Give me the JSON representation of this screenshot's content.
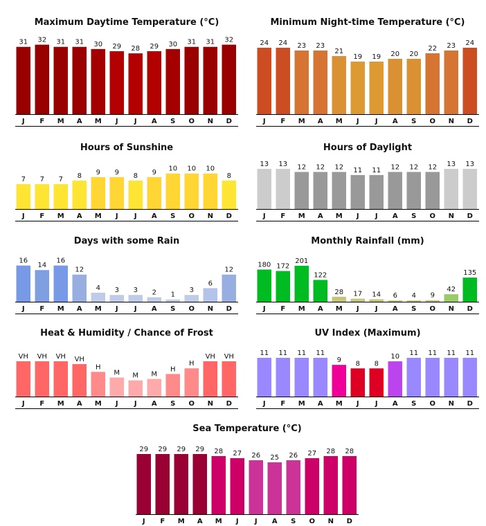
{
  "months": [
    "J",
    "F",
    "M",
    "A",
    "M",
    "J",
    "J",
    "A",
    "S",
    "O",
    "N",
    "D"
  ],
  "chart_data": [
    {
      "id": "max-temp",
      "type": "bar",
      "title": "Maximum Daytime Temperature (°C)",
      "categories": [
        "J",
        "F",
        "M",
        "A",
        "M",
        "J",
        "J",
        "A",
        "S",
        "O",
        "N",
        "D"
      ],
      "values": [
        31,
        32,
        31,
        31,
        30,
        29,
        28,
        29,
        30,
        31,
        31,
        32
      ],
      "labels": [
        "31",
        "32",
        "31",
        "31",
        "30",
        "29",
        "28",
        "29",
        "30",
        "31",
        "31",
        "32"
      ],
      "colors": [
        "#990000",
        "#990000",
        "#990000",
        "#990000",
        "#a40000",
        "#b30000",
        "#b30000",
        "#b30000",
        "#a40000",
        "#990000",
        "#990000",
        "#990000"
      ]
    },
    {
      "id": "min-temp",
      "type": "bar",
      "title": "Minimum Night-time Temperature (°C)",
      "categories": [
        "J",
        "F",
        "M",
        "A",
        "M",
        "J",
        "J",
        "A",
        "S",
        "O",
        "N",
        "D"
      ],
      "values": [
        24,
        24,
        23,
        23,
        21,
        19,
        19,
        20,
        20,
        22,
        23,
        24
      ],
      "labels": [
        "24",
        "24",
        "23",
        "23",
        "21",
        "19",
        "19",
        "20",
        "20",
        "22",
        "23",
        "24"
      ],
      "colors": [
        "#cc4d22",
        "#cc4d22",
        "#d67433",
        "#d67433",
        "#da9133",
        "#dd9a33",
        "#dd9a33",
        "#da9133",
        "#da9133",
        "#d67433",
        "#d67433",
        "#cc4d22"
      ]
    },
    {
      "id": "sunshine",
      "type": "bar",
      "title": "Hours of Sunshine",
      "categories": [
        "J",
        "F",
        "M",
        "A",
        "M",
        "J",
        "J",
        "A",
        "S",
        "O",
        "N",
        "D"
      ],
      "values": [
        7,
        7,
        7,
        8,
        9,
        9,
        8,
        9,
        10,
        10,
        10,
        8
      ],
      "labels": [
        "7",
        "7",
        "7",
        "8",
        "9",
        "9",
        "8",
        "9",
        "10",
        "10",
        "10",
        "8"
      ],
      "colors": [
        "#ffe533",
        "#ffe533",
        "#ffe533",
        "#ffe533",
        "#ffd633",
        "#ffd633",
        "#ffe533",
        "#ffd633",
        "#ffd633",
        "#ffd633",
        "#ffd633",
        "#ffe533"
      ]
    },
    {
      "id": "daylight",
      "type": "bar",
      "title": "Hours of Daylight",
      "categories": [
        "J",
        "F",
        "M",
        "A",
        "M",
        "J",
        "J",
        "A",
        "S",
        "O",
        "N",
        "D"
      ],
      "values": [
        13,
        13,
        12,
        12,
        12,
        11,
        11,
        12,
        12,
        12,
        13,
        13
      ],
      "labels": [
        "13",
        "13",
        "12",
        "12",
        "12",
        "11",
        "11",
        "12",
        "12",
        "12",
        "13",
        "13"
      ],
      "colors": [
        "#cccccc",
        "#cccccc",
        "#999999",
        "#999999",
        "#999999",
        "#999999",
        "#999999",
        "#999999",
        "#999999",
        "#999999",
        "#cccccc",
        "#cccccc"
      ]
    },
    {
      "id": "rain-days",
      "type": "bar",
      "title": "Days with some Rain",
      "categories": [
        "J",
        "F",
        "M",
        "A",
        "M",
        "J",
        "J",
        "A",
        "S",
        "O",
        "N",
        "D"
      ],
      "values": [
        16,
        14,
        16,
        12,
        4,
        3,
        3,
        2,
        1,
        3,
        6,
        12
      ],
      "labels": [
        "16",
        "14",
        "16",
        "12",
        "4",
        "3",
        "3",
        "2",
        "1",
        "3",
        "6",
        "12"
      ],
      "colors": [
        "#7799e6",
        "#7f9fe0",
        "#7799e6",
        "#99aee0",
        "#c0cbe8",
        "#c0cbe8",
        "#c0cbe8",
        "#c0cbe8",
        "#c0cbe8",
        "#c0cbe8",
        "#b3c3ea",
        "#99aee0"
      ]
    },
    {
      "id": "rainfall",
      "type": "bar",
      "title": "Monthly Rainfall (mm)",
      "categories": [
        "J",
        "F",
        "M",
        "A",
        "M",
        "J",
        "J",
        "A",
        "S",
        "O",
        "N",
        "D"
      ],
      "values": [
        180,
        172,
        201,
        122,
        28,
        17,
        14,
        6,
        4,
        9,
        42,
        135
      ],
      "labels": [
        "180",
        "172",
        "201",
        "122",
        "28",
        "17",
        "14",
        "6",
        "4",
        "9",
        "42",
        "135"
      ],
      "colors": [
        "#00bb22",
        "#00bb22",
        "#00bb22",
        "#00bb22",
        "#c4c47a",
        "#c4c47a",
        "#c4c47a",
        "#c4c47a",
        "#c4c47a",
        "#c4c47a",
        "#99cc66",
        "#00bb22"
      ]
    },
    {
      "id": "heat-frost",
      "type": "bar",
      "title": "Heat & Humidity / Chance of Frost",
      "categories": [
        "J",
        "F",
        "M",
        "A",
        "M",
        "J",
        "J",
        "A",
        "S",
        "O",
        "N",
        "D"
      ],
      "values": [
        5,
        5,
        5,
        4.6,
        3.5,
        2.7,
        2.3,
        2.5,
        3.2,
        4,
        5,
        5
      ],
      "labels": [
        "VH",
        "VH",
        "VH",
        "VH",
        "H",
        "M",
        "M",
        "M",
        "H",
        "H",
        "VH",
        "VH"
      ],
      "colors": [
        "#ff6666",
        "#ff6666",
        "#ff6666",
        "#ff6666",
        "#ff8a8a",
        "#ffaaaa",
        "#ffaaaa",
        "#ffaaaa",
        "#ff8a8a",
        "#ff8a8a",
        "#ff6666",
        "#ff6666"
      ]
    },
    {
      "id": "uv",
      "type": "bar",
      "title": "UV Index (Maximum)",
      "categories": [
        "J",
        "F",
        "M",
        "A",
        "M",
        "J",
        "J",
        "A",
        "S",
        "O",
        "N",
        "D"
      ],
      "values": [
        11,
        11,
        11,
        11,
        9,
        8,
        8,
        10,
        11,
        11,
        11,
        11
      ],
      "labels": [
        "11",
        "11",
        "11",
        "11",
        "9",
        "8",
        "8",
        "10",
        "11",
        "11",
        "11",
        "11"
      ],
      "colors": [
        "#9988ff",
        "#9988ff",
        "#9988ff",
        "#9988ff",
        "#ee0099",
        "#dd0022",
        "#dd0022",
        "#bb44ee",
        "#9988ff",
        "#9988ff",
        "#9988ff",
        "#9988ff"
      ]
    },
    {
      "id": "sea-temp",
      "type": "bar",
      "title": "Sea Temperature (°C)",
      "categories": [
        "J",
        "F",
        "M",
        "A",
        "M",
        "J",
        "J",
        "A",
        "S",
        "O",
        "N",
        "D"
      ],
      "values": [
        29,
        29,
        29,
        29,
        28,
        27,
        26,
        25,
        26,
        27,
        28,
        28
      ],
      "labels": [
        "29",
        "29",
        "29",
        "29",
        "28",
        "27",
        "26",
        "25",
        "26",
        "27",
        "28",
        "28"
      ],
      "colors": [
        "#990033",
        "#990033",
        "#990033",
        "#990033",
        "#cc0066",
        "#cc0066",
        "#cc3399",
        "#cc3399",
        "#cc3399",
        "#cc0066",
        "#cc0066",
        "#cc0066"
      ]
    }
  ]
}
